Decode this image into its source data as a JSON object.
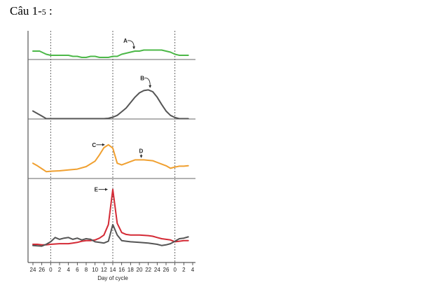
{
  "page": {
    "title_main": "Câu 1-",
    "title_small": "5",
    "title_suffix": " :"
  },
  "chart_data": {
    "type": "line",
    "xlabel": "Day of cycle",
    "x": [
      -4,
      -2,
      0,
      2,
      4,
      6,
      8,
      10,
      12,
      14,
      16,
      18,
      20,
      22,
      24,
      26,
      28,
      30,
      32
    ],
    "x_tick_labels": [
      "24",
      "26",
      "0",
      "2",
      "4",
      "6",
      "8",
      "10",
      "12",
      "14",
      "16",
      "18",
      "20",
      "22",
      "24",
      "26",
      "0",
      "2",
      "4"
    ],
    "vertical_dashed_lines_at_x": [
      0,
      14,
      28
    ],
    "panels": [
      {
        "id": "panel-1",
        "reference_line": true,
        "ylim": [
          0,
          10
        ],
        "series": [
          {
            "annotation": "A",
            "color": "#4cb848",
            "points": [
              [
                -4,
                9
              ],
              [
                -2.5,
                9
              ],
              [
                -1,
                7.5
              ],
              [
                0,
                7
              ],
              [
                2,
                7
              ],
              [
                4,
                7
              ],
              [
                5,
                6.5
              ],
              [
                6,
                6.5
              ],
              [
                7,
                6
              ],
              [
                8,
                6
              ],
              [
                9,
                6.5
              ],
              [
                10,
                6.5
              ],
              [
                11,
                6
              ],
              [
                12,
                6
              ],
              [
                13,
                6
              ],
              [
                14,
                6.5
              ],
              [
                15,
                6.5
              ],
              [
                16,
                7.5
              ],
              [
                17,
                8
              ],
              [
                18,
                8.5
              ],
              [
                19,
                9
              ],
              [
                20,
                9
              ],
              [
                21,
                9.5
              ],
              [
                22,
                9.5
              ],
              [
                23,
                9.5
              ],
              [
                24,
                9.5
              ],
              [
                25,
                9.5
              ],
              [
                26,
                9
              ],
              [
                27,
                8.5
              ],
              [
                28,
                7.5
              ],
              [
                29,
                7
              ],
              [
                30,
                7
              ],
              [
                31,
                7
              ]
            ]
          }
        ],
        "annotations": [
          {
            "label": "A",
            "x": 18.6,
            "y": 9
          }
        ]
      },
      {
        "id": "panel-2",
        "ylim": [
          0,
          10
        ],
        "series": [
          {
            "annotation": "B",
            "color": "#555555",
            "points": [
              [
                -4,
                2.2
              ],
              [
                -2,
                0.8
              ],
              [
                -1,
                0.1
              ],
              [
                0,
                0.1
              ],
              [
                4,
                0.1
              ],
              [
                8,
                0.1
              ],
              [
                12,
                0.1
              ],
              [
                13,
                0.2
              ],
              [
                14,
                0.5
              ],
              [
                15,
                1
              ],
              [
                16,
                2
              ],
              [
                17,
                3
              ],
              [
                18,
                4.5
              ],
              [
                19,
                6
              ],
              [
                20,
                7.2
              ],
              [
                21,
                7.8
              ],
              [
                22,
                8
              ],
              [
                23,
                7.5
              ],
              [
                24,
                6
              ],
              [
                25,
                4
              ],
              [
                26,
                2.2
              ],
              [
                27,
                1
              ],
              [
                28,
                0.4
              ],
              [
                29,
                0.1
              ],
              [
                30,
                0.1
              ],
              [
                31,
                0.1
              ]
            ]
          }
        ],
        "annotations": [
          {
            "label": "B",
            "x": 22.4,
            "y": 8
          }
        ]
      },
      {
        "id": "panel-3",
        "ylim": [
          0,
          10
        ],
        "series": [
          {
            "annotation": "C",
            "color": "#f0a030",
            "points": [
              [
                -4,
                2.8
              ],
              [
                -3,
                2.2
              ],
              [
                -2,
                1.5
              ],
              [
                -1,
                0.8
              ],
              [
                0,
                0.9
              ],
              [
                2,
                1
              ],
              [
                4,
                1.2
              ],
              [
                6,
                1.4
              ],
              [
                8,
                2
              ],
              [
                10,
                3.3
              ],
              [
                11,
                4.8
              ],
              [
                12,
                6.5
              ],
              [
                13,
                7.2
              ],
              [
                14,
                6.4
              ],
              [
                15,
                2.8
              ],
              [
                16,
                2.4
              ],
              [
                17,
                2.8
              ],
              [
                18,
                3.2
              ],
              [
                19,
                3.6
              ],
              [
                20,
                3.6
              ],
              [
                21,
                3.6
              ],
              [
                22,
                3.5
              ],
              [
                23,
                3.4
              ],
              [
                24,
                3
              ],
              [
                25,
                2.6
              ],
              [
                26,
                2.2
              ],
              [
                27,
                1.6
              ],
              [
                28,
                1.9
              ],
              [
                29,
                2.1
              ],
              [
                30,
                2.1
              ],
              [
                31,
                2.2
              ]
            ]
          }
        ],
        "annotations": [
          {
            "label": "C",
            "x": 12.8,
            "y": 7.2
          },
          {
            "label": "D",
            "x": 20.4,
            "y": 3.6
          }
        ]
      },
      {
        "id": "panel-4",
        "ylim": [
          0,
          10
        ],
        "series": [
          {
            "annotation": "E",
            "color": "#d42a35",
            "points": [
              [
                -4,
                0.8
              ],
              [
                -3,
                0.8
              ],
              [
                -2,
                0.7
              ],
              [
                -1,
                0.7
              ],
              [
                0,
                0.8
              ],
              [
                2,
                0.9
              ],
              [
                4,
                0.9
              ],
              [
                5,
                1
              ],
              [
                6,
                1.1
              ],
              [
                7,
                1.3
              ],
              [
                8,
                1.4
              ],
              [
                9,
                1.4
              ],
              [
                10,
                1.5
              ],
              [
                11,
                1.8
              ],
              [
                12,
                2.3
              ],
              [
                13,
                4
              ],
              [
                14,
                9.7
              ],
              [
                15,
                4.2
              ],
              [
                16,
                2.7
              ],
              [
                17,
                2.4
              ],
              [
                18,
                2.3
              ],
              [
                20,
                2.3
              ],
              [
                22,
                2.2
              ],
              [
                23,
                2.1
              ],
              [
                24,
                1.9
              ],
              [
                25,
                1.7
              ],
              [
                26,
                1.6
              ],
              [
                27,
                1.5
              ],
              [
                28,
                1.2
              ],
              [
                29,
                1.3
              ],
              [
                30,
                1.4
              ],
              [
                31,
                1.4
              ]
            ]
          },
          {
            "annotation": "",
            "color": "#555555",
            "points": [
              [
                -4,
                0.6
              ],
              [
                -2,
                0.5
              ],
              [
                -1,
                0.8
              ],
              [
                0,
                1.2
              ],
              [
                1,
                1.9
              ],
              [
                2,
                1.6
              ],
              [
                3,
                1.8
              ],
              [
                4,
                1.9
              ],
              [
                5,
                1.6
              ],
              [
                6,
                1.8
              ],
              [
                7,
                1.5
              ],
              [
                8,
                1.7
              ],
              [
                9,
                1.6
              ],
              [
                10,
                1.2
              ],
              [
                11,
                1.1
              ],
              [
                12,
                1
              ],
              [
                13,
                1.3
              ],
              [
                14,
                4
              ],
              [
                15,
                2.3
              ],
              [
                16,
                1.4
              ],
              [
                17,
                1.3
              ],
              [
                18,
                1.2
              ],
              [
                20,
                1.1
              ],
              [
                22,
                1
              ],
              [
                23,
                0.9
              ],
              [
                24,
                0.8
              ],
              [
                25,
                0.6
              ],
              [
                26,
                0.7
              ],
              [
                27,
                0.9
              ],
              [
                28,
                1.3
              ],
              [
                29,
                1.7
              ],
              [
                30,
                1.8
              ],
              [
                31,
                2
              ]
            ]
          }
        ],
        "annotations": [
          {
            "label": "E",
            "x": 13.3,
            "y": 9.7
          }
        ]
      }
    ]
  }
}
